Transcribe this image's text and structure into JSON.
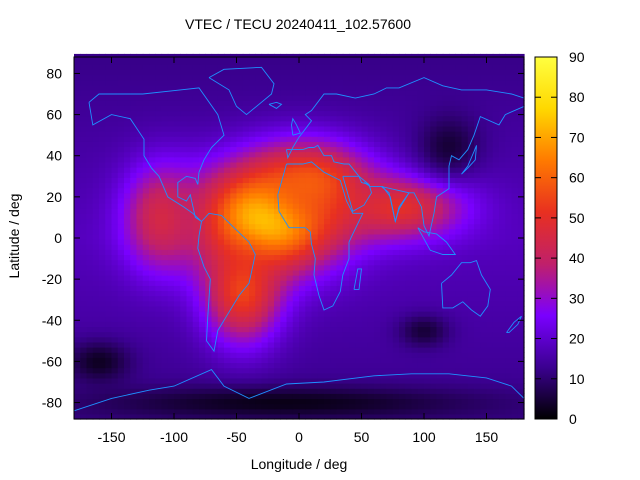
{
  "chart_data": {
    "type": "heatmap",
    "title": "VTEC / TECU 20240411_102.57600",
    "xlabel": "Longitude / deg",
    "ylabel": "Latitude / deg",
    "xlim": [
      -180,
      180
    ],
    "ylim": [
      -88,
      88
    ],
    "x_ticks": [
      -150,
      -100,
      -50,
      0,
      50,
      100,
      150
    ],
    "y_ticks": [
      -80,
      -60,
      -40,
      -20,
      0,
      20,
      40,
      60,
      80
    ],
    "colorbar": {
      "range": [
        0,
        90
      ],
      "ticks": [
        0,
        10,
        20,
        30,
        40,
        50,
        60,
        70,
        80,
        90
      ],
      "palette": [
        "#000000",
        "#3b0090",
        "#7a00ff",
        "#c0206a",
        "#e83020",
        "#ff7a00",
        "#ffd800",
        "#ffff40"
      ]
    },
    "grid": false,
    "overlay": "coastlines",
    "overlay_color": "#1e90ff",
    "features": [
      {
        "lon": -25,
        "lat": 10,
        "vtec": 82,
        "radius_lon": 55,
        "radius_lat": 25
      },
      {
        "lon": -45,
        "lat": -25,
        "vtec": 55,
        "radius_lon": 30,
        "radius_lat": 25
      },
      {
        "lon": 10,
        "lat": 25,
        "vtec": 60,
        "radius_lon": 45,
        "radius_lat": 20
      },
      {
        "lon": 80,
        "lat": 15,
        "vtec": 50,
        "radius_lon": 50,
        "radius_lat": 15
      },
      {
        "lon": -110,
        "lat": 10,
        "vtec": 45,
        "radius_lon": 30,
        "radius_lat": 25
      },
      {
        "lon": -160,
        "lat": -60,
        "vtec": 3,
        "radius_lon": 25,
        "radius_lat": 10
      },
      {
        "lon": 100,
        "lat": -45,
        "vtec": 5,
        "radius_lon": 20,
        "radius_lat": 8
      },
      {
        "lon": 120,
        "lat": 45,
        "vtec": 5,
        "radius_lon": 25,
        "radius_lat": 15
      },
      {
        "lon": -10,
        "lat": -80,
        "vtec": 2,
        "radius_lon": 150,
        "radius_lat": 8
      }
    ]
  }
}
